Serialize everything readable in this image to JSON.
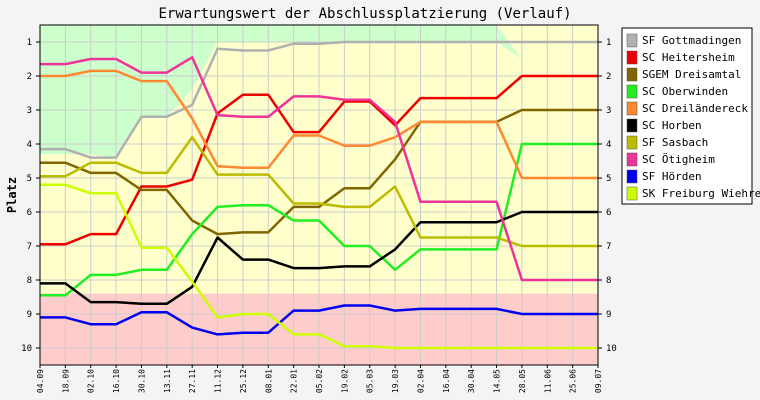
{
  "chart_data": {
    "type": "line",
    "title": "Erwartungswert der Abschlussplatzierung (Verlauf)",
    "xlabel": "",
    "ylabel": "Platz",
    "ylim": [
      10.5,
      0.5
    ],
    "y_ticks": [
      1,
      2,
      3,
      4,
      5,
      6,
      7,
      8,
      9,
      10
    ],
    "categories": [
      "04.09",
      "18.09",
      "02.10",
      "16.10",
      "30.10",
      "13.11",
      "27.11",
      "11.12",
      "25.12",
      "08.01",
      "22.01",
      "05.02",
      "19.02",
      "05.03",
      "19.03",
      "02.04",
      "16.04",
      "30.04",
      "14.05",
      "28.05",
      "11.06",
      "25.06",
      "09.07"
    ],
    "grid": true,
    "legend_position": "right",
    "bands": {
      "top_color": "#ccffcc",
      "middle_color": "#ffffcc",
      "bottom_color": "#ffcccc",
      "top_boundary": [
        4.3,
        4.3,
        4.3,
        4.4,
        3.2,
        3.2,
        2.4,
        1.0,
        1.0,
        1.0,
        1.0,
        1.0,
        1.0,
        1.0,
        1.0,
        1.0,
        1.0,
        1.0,
        1.0,
        1.0,
        1.0,
        1.0,
        1.0
      ],
      "bottom_boundary": [
        8.4,
        8.4,
        8.4,
        8.4,
        8.4,
        8.4,
        8.4,
        8.4,
        8.4,
        8.4,
        8.4,
        8.4,
        8.4,
        8.4,
        8.4,
        8.4,
        8.4,
        8.4,
        8.4,
        8.4,
        8.4,
        8.4,
        8.4
      ],
      "top_boundary_note": "upper band edge",
      "upper_edge": [
        0.5,
        0.5,
        0.5,
        0.5,
        0.5,
        0.5,
        0.5,
        0.5,
        0.5,
        0.5,
        0.5,
        0.5,
        0.5,
        0.5,
        0.5,
        0.5,
        0.5,
        0.5,
        0.5,
        1.5,
        2.5,
        2.5,
        2.5
      ]
    },
    "series": [
      {
        "name": "SF Gottmadingen",
        "color": "#b0b0b0",
        "values": [
          4.15,
          4.15,
          4.4,
          4.4,
          3.2,
          3.2,
          2.85,
          1.2,
          1.25,
          1.25,
          1.05,
          1.05,
          1.0,
          1.0,
          1.0,
          1.0,
          1.0,
          1.0,
          1.0,
          1.0,
          1.0,
          1.0,
          1.0
        ]
      },
      {
        "name": "SC Heitersheim",
        "color": "#ee0000",
        "values": [
          6.95,
          6.95,
          6.65,
          6.65,
          5.25,
          5.25,
          5.05,
          3.1,
          2.55,
          2.55,
          3.65,
          3.65,
          2.75,
          2.75,
          3.45,
          2.65,
          2.65,
          2.65,
          2.65,
          2.0,
          2.0,
          2.0,
          2.0
        ]
      },
      {
        "name": "SGEM Dreisamtal",
        "color": "#806600",
        "values": [
          4.55,
          4.55,
          4.85,
          4.85,
          5.35,
          5.35,
          6.25,
          6.65,
          6.6,
          6.6,
          5.85,
          5.85,
          5.3,
          5.3,
          4.45,
          3.35,
          3.35,
          3.35,
          3.35,
          3.0,
          3.0,
          3.0,
          3.0
        ]
      },
      {
        "name": "SC Oberwinden",
        "color": "#22ee22",
        "values": [
          8.45,
          8.45,
          7.85,
          7.85,
          7.7,
          7.7,
          6.65,
          5.85,
          5.8,
          5.8,
          6.25,
          6.25,
          7.0,
          7.0,
          7.7,
          7.1,
          7.1,
          7.1,
          7.1,
          4.0,
          4.0,
          4.0,
          4.0
        ]
      },
      {
        "name": "SC Dreiländereck",
        "color": "#ff8833",
        "values": [
          2.0,
          2.0,
          1.85,
          1.85,
          2.15,
          2.15,
          3.25,
          4.65,
          4.7,
          4.7,
          3.75,
          3.75,
          4.05,
          4.05,
          3.8,
          3.35,
          3.35,
          3.35,
          3.35,
          5.0,
          5.0,
          5.0,
          5.0
        ]
      },
      {
        "name": "SC Horben",
        "color": "#000000",
        "values": [
          8.1,
          8.1,
          8.65,
          8.65,
          8.7,
          8.7,
          8.2,
          6.75,
          7.4,
          7.4,
          7.65,
          7.65,
          7.6,
          7.6,
          7.1,
          6.3,
          6.3,
          6.3,
          6.3,
          6.0,
          6.0,
          6.0,
          6.0
        ]
      },
      {
        "name": "SF Sasbach",
        "color": "#bbbb00",
        "values": [
          4.95,
          4.95,
          4.55,
          4.55,
          4.85,
          4.85,
          3.8,
          4.9,
          4.9,
          4.9,
          5.75,
          5.75,
          5.85,
          5.85,
          5.25,
          6.75,
          6.75,
          6.75,
          6.75,
          7.0,
          7.0,
          7.0,
          7.0
        ]
      },
      {
        "name": "SC Ötigheim",
        "color": "#ee3399",
        "values": [
          1.65,
          1.65,
          1.5,
          1.5,
          1.9,
          1.9,
          1.45,
          3.15,
          3.2,
          3.2,
          2.6,
          2.6,
          2.7,
          2.7,
          3.35,
          5.7,
          5.7,
          5.7,
          5.7,
          8.0,
          8.0,
          8.0,
          8.0
        ]
      },
      {
        "name": "SF Hörden",
        "color": "#0000ee",
        "values": [
          9.1,
          9.1,
          9.3,
          9.3,
          8.95,
          8.95,
          9.4,
          9.6,
          9.55,
          9.55,
          8.9,
          8.9,
          8.75,
          8.75,
          8.9,
          8.85,
          8.85,
          8.85,
          8.85,
          9.0,
          9.0,
          9.0,
          9.0
        ]
      },
      {
        "name": "SK Freiburg Wiehre",
        "color": "#ccff00",
        "values": [
          5.2,
          5.2,
          5.45,
          5.45,
          7.05,
          7.05,
          8.05,
          9.1,
          9.0,
          9.0,
          9.6,
          9.6,
          9.95,
          9.95,
          10.0,
          10.0,
          10.0,
          10.0,
          10.0,
          10.0,
          10.0,
          10.0,
          10.0
        ]
      }
    ]
  }
}
